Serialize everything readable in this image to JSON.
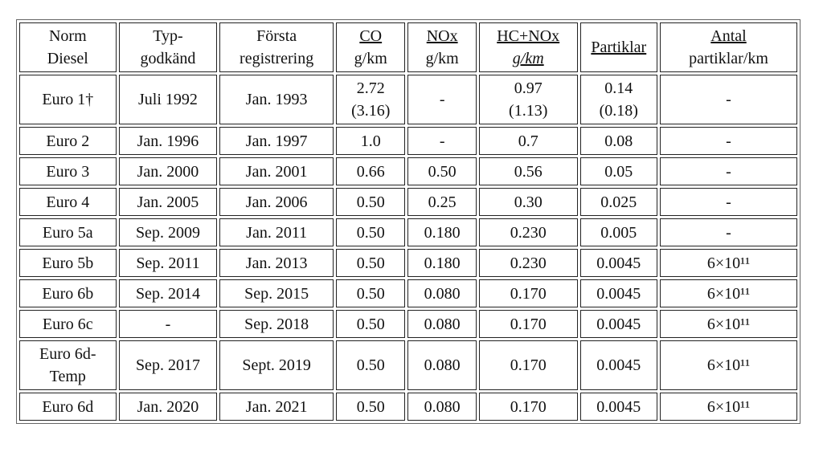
{
  "table": {
    "header": [
      [
        "Norm",
        "Diesel"
      ],
      [
        "Typ-",
        "godkänd"
      ],
      [
        "Första",
        "registrering"
      ],
      [
        "CO",
        "g/km"
      ],
      [
        "NOx",
        "g/km"
      ],
      [
        "HC+NOx",
        "g/km"
      ],
      [
        "Partiklar"
      ],
      [
        "Antal",
        "partiklar/km"
      ]
    ],
    "rows": [
      [
        "Euro 1†",
        "Juli 1992",
        "Jan. 1993",
        "2.72\n(3.16)",
        "-",
        "0.97\n(1.13)",
        "0.14\n(0.18)",
        "-"
      ],
      [
        "Euro 2",
        "Jan. 1996",
        "Jan. 1997",
        "1.0",
        "-",
        "0.7",
        "0.08",
        "-"
      ],
      [
        "Euro 3",
        "Jan. 2000",
        "Jan. 2001",
        "0.66",
        "0.50",
        "0.56",
        "0.05",
        "-"
      ],
      [
        "Euro 4",
        "Jan. 2005",
        "Jan. 2006",
        "0.50",
        "0.25",
        "0.30",
        "0.025",
        "-"
      ],
      [
        "Euro 5a",
        "Sep. 2009",
        "Jan. 2011",
        "0.50",
        "0.180",
        "0.230",
        "0.005",
        "-"
      ],
      [
        "Euro 5b",
        "Sep. 2011",
        "Jan. 2013",
        "0.50",
        "0.180",
        "0.230",
        "0.0045",
        "6×10¹¹"
      ],
      [
        "Euro 6b",
        "Sep. 2014",
        "Sep. 2015",
        "0.50",
        "0.080",
        "0.170",
        "0.0045",
        "6×10¹¹"
      ],
      [
        "Euro 6c",
        "-",
        "Sep. 2018",
        "0.50",
        "0.080",
        "0.170",
        "0.0045",
        "6×10¹¹"
      ],
      [
        "Euro 6d-\nTemp",
        "Sep. 2017",
        "Sept. 2019",
        "0.50",
        "0.080",
        "0.170",
        "0.0045",
        "6×10¹¹"
      ],
      [
        "Euro 6d",
        "Jan. 2020",
        "Jan. 2021",
        "0.50",
        "0.080",
        "0.170",
        "0.0045",
        "6×10¹¹"
      ]
    ]
  }
}
